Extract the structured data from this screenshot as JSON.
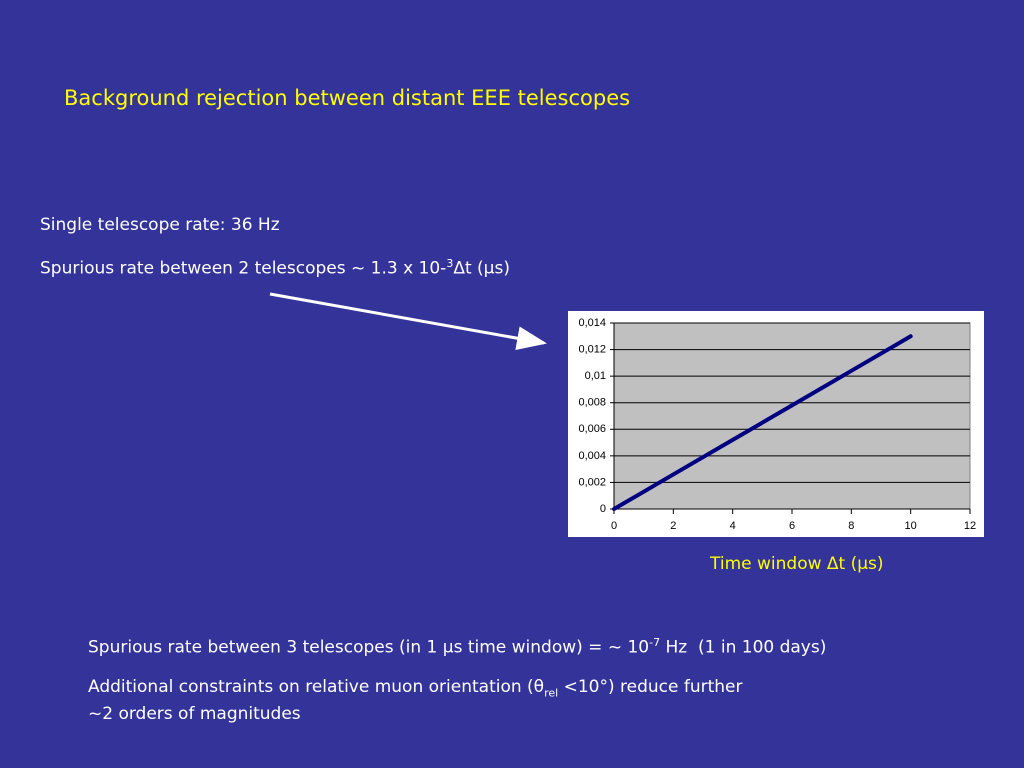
{
  "title": "Background rejection between distant EEE telescopes",
  "single_rate": "Single telescope rate: 36 Hz",
  "two_rate": [
    "Spurious rate between 2 telescopes ~ 1.3 x 10-",
    "3",
    "Δt (μs)"
  ],
  "three_rate": [
    "Spurious rate between 3 telescopes (in 1 μs time window) = ~ 10",
    "-7",
    " Hz  (1 in 100 days)"
  ],
  "constraints": [
    "Additional constraints on relative muon orientation (θ",
    "rel",
    " <10°) reduce further"
  ],
  "constraints_2": "~2 orders of magnitudes",
  "chart_data": {
    "type": "line",
    "x_label": "Time window Δt (μs)",
    "x": [
      0,
      2,
      4,
      6,
      8,
      10
    ],
    "series": [
      {
        "color": "#000080",
        "values": [
          0,
          0.0026,
          0.0052,
          0.0078,
          0.0104,
          0.013
        ]
      }
    ],
    "xlim": [
      0,
      12
    ],
    "xticks": [
      0,
      2,
      4,
      6,
      8,
      10,
      12
    ],
    "ylim": [
      0,
      0.014
    ],
    "yticks": [
      0,
      {
        "value": 0.002,
        "label": "0,002"
      },
      {
        "value": 0.004,
        "label": "0,004"
      },
      {
        "value": 0.006,
        "label": "0,006"
      },
      {
        "value": 0.008,
        "label": "0,008"
      },
      {
        "value": 0.01,
        "label": "0,01"
      },
      {
        "value": 0.012,
        "label": "0,012"
      },
      {
        "value": 0.014,
        "label": "0,014"
      }
    ],
    "grid": true
  }
}
